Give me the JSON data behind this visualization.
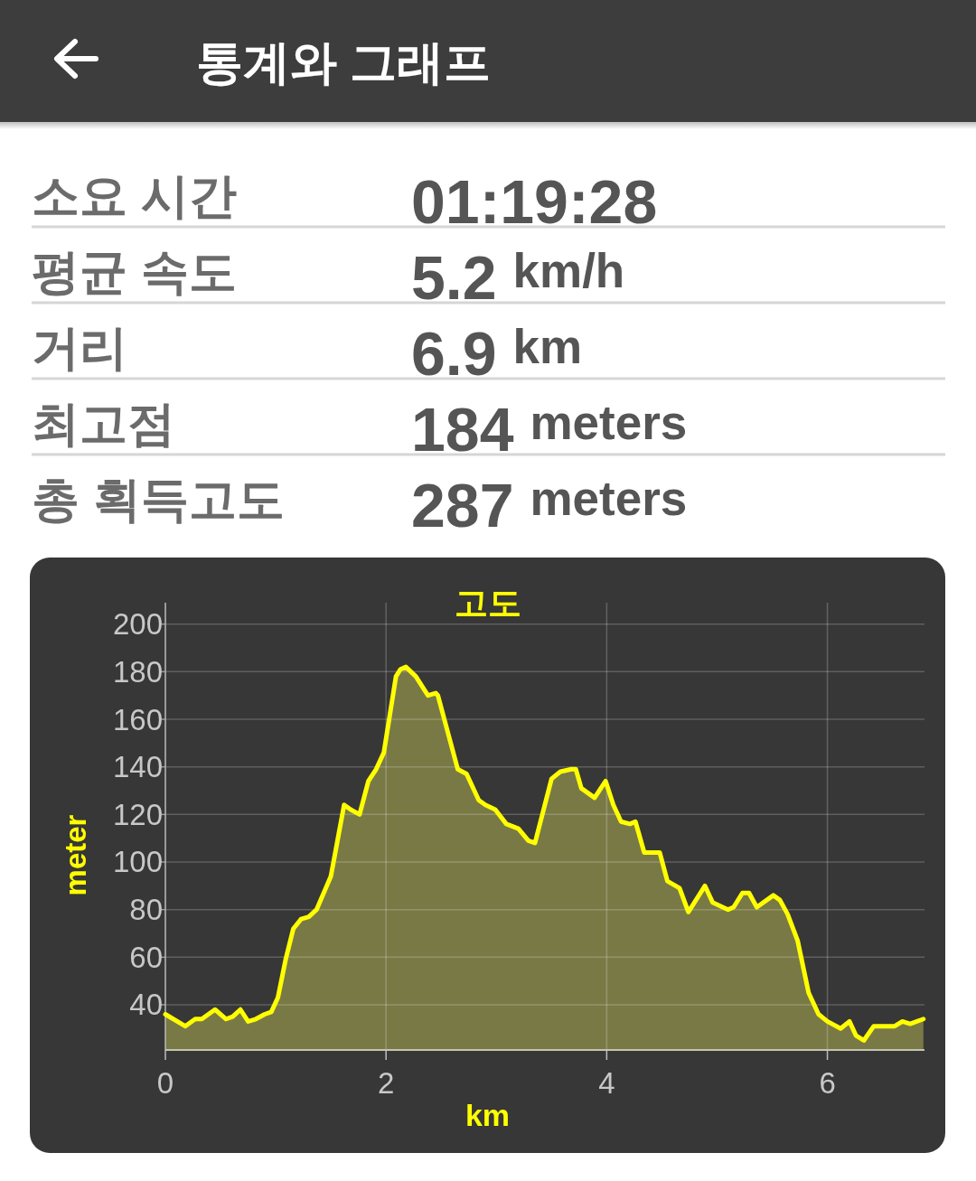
{
  "chart_data": [
    {
      "type": "other",
      "title": "통계와 그래프",
      "categories": [
        "소요 시간",
        "평균 속도",
        "거리",
        "최고점",
        "총 획득고도"
      ],
      "value_labels": [
        "01:19:28",
        "5.2 km/h",
        "6.9 km",
        "184 meters",
        "287 meters"
      ]
    },
    {
      "type": "area",
      "title": "고도",
      "xlabel": "km",
      "ylabel": "meter",
      "x": [
        0,
        0.18,
        0.27,
        0.33,
        0.45,
        0.55,
        0.61,
        0.68,
        0.75,
        0.82,
        0.9,
        0.96,
        1.02,
        1.09,
        1.16,
        1.23,
        1.3,
        1.37,
        1.5,
        1.54,
        1.62,
        1.68,
        1.76,
        1.84,
        1.91,
        1.98,
        2.09,
        2.13,
        2.18,
        2.27,
        2.38,
        2.45,
        2.47,
        2.65,
        2.73,
        2.84,
        2.9,
        2.99,
        3.09,
        3.2,
        3.29,
        3.35,
        3.5,
        3.58,
        3.68,
        3.72,
        3.77,
        3.89,
        3.99,
        4.06,
        4.13,
        4.21,
        4.26,
        4.34,
        4.45,
        4.48,
        4.55,
        4.66,
        4.74,
        4.89,
        4.96,
        5.1,
        5.15,
        5.23,
        5.29,
        5.36,
        5.51,
        5.57,
        5.64,
        5.73,
        5.83,
        5.92,
        6.0,
        6.12,
        6.2,
        6.26,
        6.33,
        6.42,
        6.5,
        6.61,
        6.68,
        6.75,
        6.87
      ],
      "series": [
        {
          "color": "#ffff00",
          "values": [
            36,
            31,
            34,
            34,
            38,
            34,
            35,
            38,
            33,
            34,
            36,
            37,
            43,
            59,
            72,
            76,
            77,
            80,
            94,
            104,
            124,
            122,
            120,
            134,
            139,
            146,
            178,
            181,
            182,
            178,
            170,
            171,
            170,
            139,
            137,
            126,
            124,
            122,
            116,
            114,
            109,
            108,
            135,
            138,
            139,
            139,
            131,
            127,
            134,
            124,
            117,
            116,
            117,
            104,
            104,
            104,
            92,
            89,
            79,
            90,
            83,
            80,
            81,
            87,
            87,
            81,
            86,
            84,
            78,
            67,
            45,
            36,
            33,
            30,
            33,
            27,
            25,
            31,
            31,
            31,
            33,
            32,
            34
          ]
        }
      ],
      "xlim": [
        0,
        6.88
      ],
      "ylim": [
        21,
        209
      ],
      "xticks": [
        0,
        2,
        4,
        6
      ],
      "yticks": [
        40,
        60,
        80,
        100,
        120,
        140,
        160,
        180,
        200
      ],
      "grid": true
    }
  ]
}
